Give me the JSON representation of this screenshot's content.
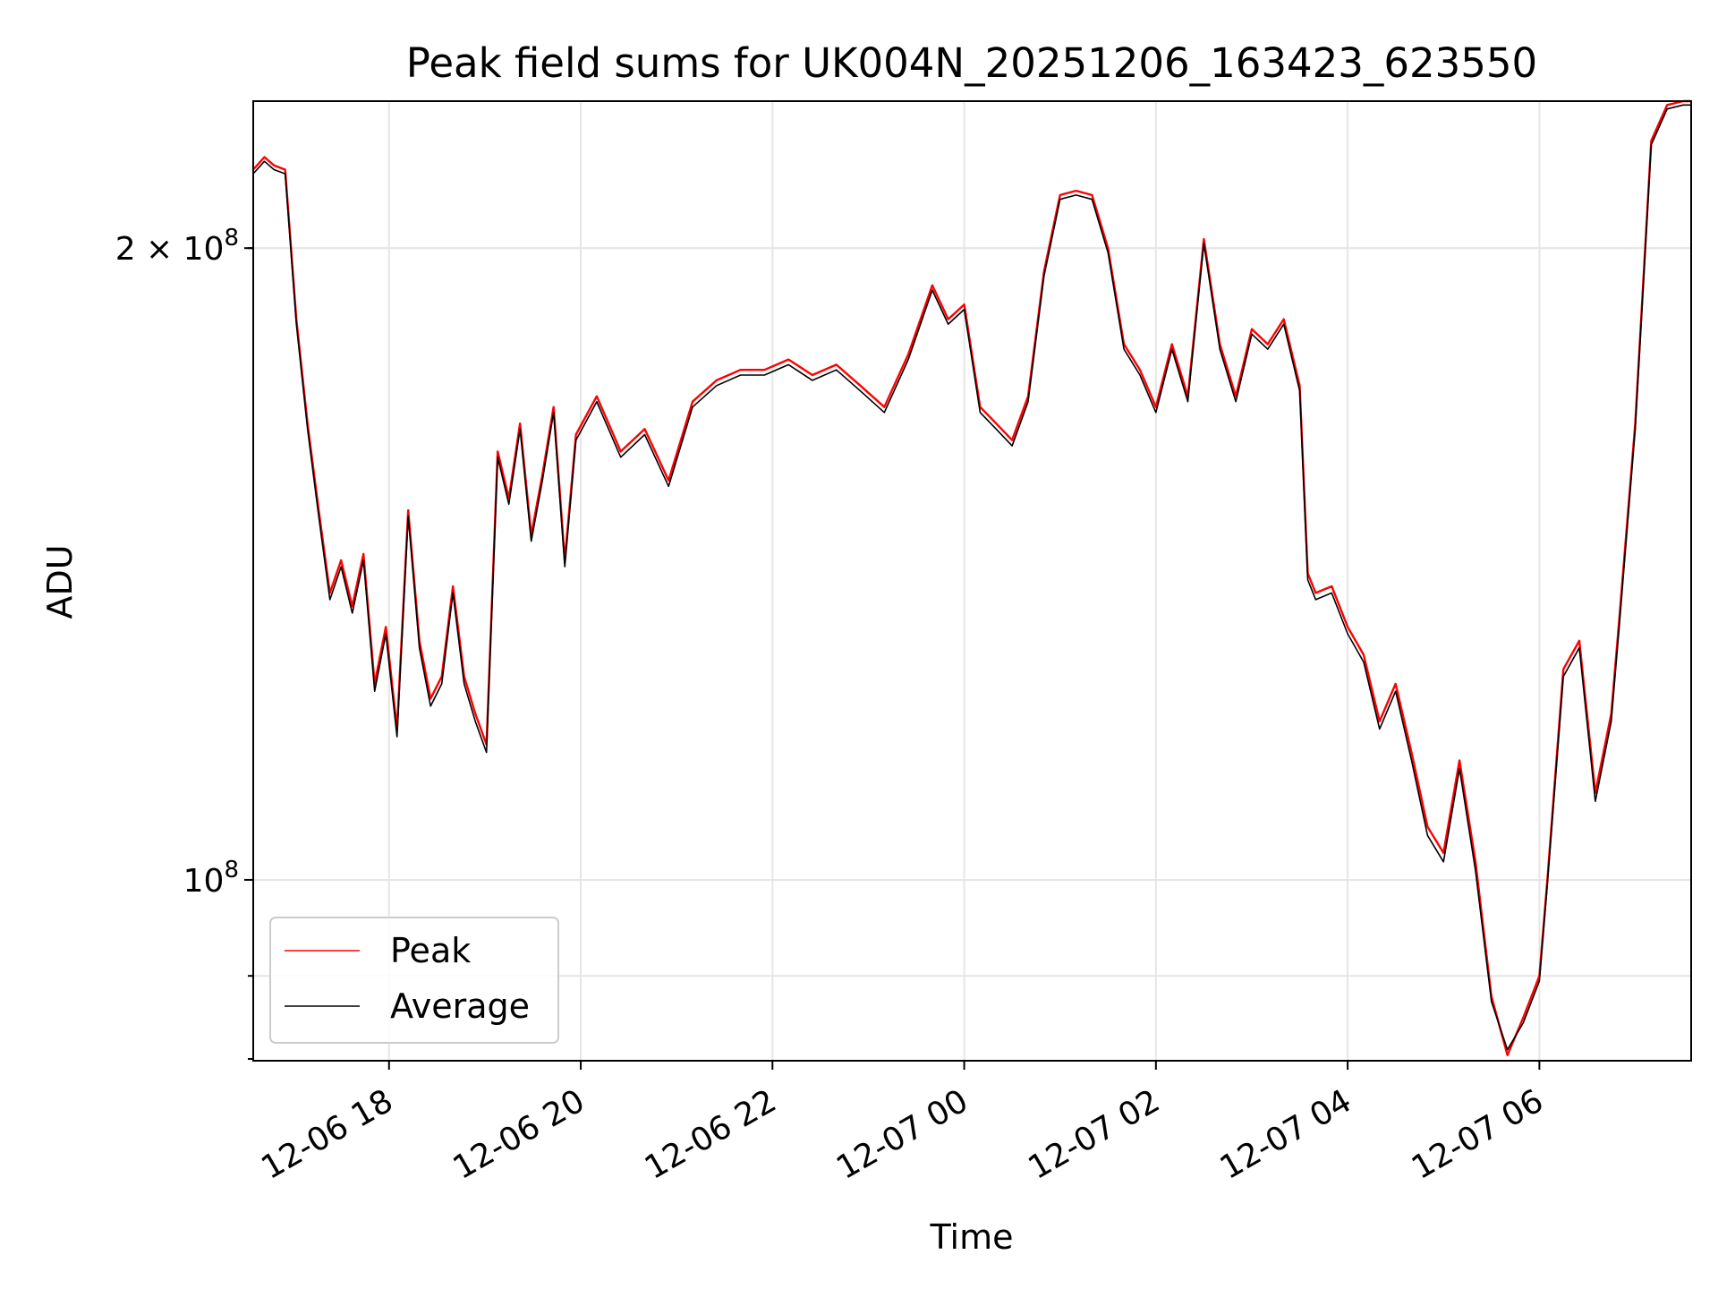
{
  "chart_data": {
    "type": "line",
    "title": "Peak field sums for UK004N_20251206_163423_623550",
    "xlabel": "Time",
    "ylabel": "ADU",
    "y_scale": "log",
    "grid": true,
    "legend_position": "lower-left",
    "xlim": [
      "2025-12-06 16:35",
      "2025-12-07 07:35"
    ],
    "ylim": [
      82000000,
      235000000
    ],
    "x_ticks": [
      {
        "value": "2025-12-06 18:00",
        "label": "12-06 18"
      },
      {
        "value": "2025-12-06 20:00",
        "label": "12-06 20"
      },
      {
        "value": "2025-12-06 22:00",
        "label": "12-06 22"
      },
      {
        "value": "2025-12-07 00:00",
        "label": "12-07 00"
      },
      {
        "value": "2025-12-07 02:00",
        "label": "12-07 02"
      },
      {
        "value": "2025-12-07 04:00",
        "label": "12-07 04"
      },
      {
        "value": "2025-12-07 06:00",
        "label": "12-07 06"
      }
    ],
    "y_ticks_major": [
      {
        "value": 100000000,
        "label": "10",
        "exp": "8"
      },
      {
        "value": 200000000,
        "label": "2 × 10",
        "exp": "8"
      }
    ],
    "y_ticks_minor": [
      90000000,
      200000000
    ],
    "x": [
      "2025-12-06 16:35",
      "2025-12-06 16:42",
      "2025-12-06 16:48",
      "2025-12-06 16:55",
      "2025-12-06 17:02",
      "2025-12-06 17:09",
      "2025-12-06 17:16",
      "2025-12-06 17:23",
      "2025-12-06 17:30",
      "2025-12-06 17:37",
      "2025-12-06 17:44",
      "2025-12-06 17:51",
      "2025-12-06 17:58",
      "2025-12-06 18:05",
      "2025-12-06 18:12",
      "2025-12-06 18:19",
      "2025-12-06 18:26",
      "2025-12-06 18:33",
      "2025-12-06 18:40",
      "2025-12-06 18:47",
      "2025-12-06 18:54",
      "2025-12-06 19:01",
      "2025-12-06 19:08",
      "2025-12-06 19:15",
      "2025-12-06 19:22",
      "2025-12-06 19:29",
      "2025-12-06 19:36",
      "2025-12-06 19:43",
      "2025-12-06 19:50",
      "2025-12-06 19:57",
      "2025-12-06 20:10",
      "2025-12-06 20:25",
      "2025-12-06 20:40",
      "2025-12-06 20:55",
      "2025-12-06 21:10",
      "2025-12-06 21:25",
      "2025-12-06 21:40",
      "2025-12-06 21:55",
      "2025-12-06 22:10",
      "2025-12-06 22:25",
      "2025-12-06 22:40",
      "2025-12-06 22:55",
      "2025-12-06 23:10",
      "2025-12-06 23:25",
      "2025-12-06 23:40",
      "2025-12-06 23:50",
      "2025-12-07 00:00",
      "2025-12-07 00:10",
      "2025-12-07 00:20",
      "2025-12-07 00:30",
      "2025-12-07 00:40",
      "2025-12-07 00:50",
      "2025-12-07 01:00",
      "2025-12-07 01:10",
      "2025-12-07 01:20",
      "2025-12-07 01:30",
      "2025-12-07 01:40",
      "2025-12-07 01:50",
      "2025-12-07 02:00",
      "2025-12-07 02:10",
      "2025-12-07 02:20",
      "2025-12-07 02:30",
      "2025-12-07 02:40",
      "2025-12-07 02:50",
      "2025-12-07 03:00",
      "2025-12-07 03:10",
      "2025-12-07 03:20",
      "2025-12-07 03:30",
      "2025-12-07 03:35",
      "2025-12-07 03:40",
      "2025-12-07 03:50",
      "2025-12-07 04:00",
      "2025-12-07 04:10",
      "2025-12-07 04:20",
      "2025-12-07 04:30",
      "2025-12-07 04:40",
      "2025-12-07 04:50",
      "2025-12-07 05:00",
      "2025-12-07 05:10",
      "2025-12-07 05:20",
      "2025-12-07 05:30",
      "2025-12-07 05:40",
      "2025-12-07 05:50",
      "2025-12-07 06:00",
      "2025-12-07 06:05",
      "2025-12-07 06:15",
      "2025-12-07 06:25",
      "2025-12-07 06:35",
      "2025-12-07 06:45",
      "2025-12-07 06:50",
      "2025-12-07 07:00",
      "2025-12-07 07:10",
      "2025-12-07 07:20",
      "2025-12-07 07:30",
      "2025-12-07 07:35"
    ],
    "series": [
      {
        "name": "Peak",
        "color": "#ff0000",
        "values": [
          218000000,
          221000000,
          219000000,
          218000000,
          185000000,
          165000000,
          150000000,
          137000000,
          142000000,
          135000000,
          143000000,
          124000000,
          132000000,
          118000000,
          150000000,
          130000000,
          122000000,
          125000000,
          138000000,
          125000000,
          120000000,
          116000000,
          160000000,
          152000000,
          165000000,
          146000000,
          156000000,
          168000000,
          142000000,
          163000000,
          170000000,
          160000000,
          164000000,
          155000000,
          169000000,
          173000000,
          175000000,
          175000000,
          177000000,
          174000000,
          176000000,
          172000000,
          168000000,
          178000000,
          192000000,
          185000000,
          188000000,
          168000000,
          165000000,
          162000000,
          170000000,
          195000000,
          212000000,
          213000000,
          212000000,
          200000000,
          180000000,
          175000000,
          168000000,
          180000000,
          170000000,
          202000000,
          180000000,
          170000000,
          183000000,
          180000000,
          185000000,
          172000000,
          140000000,
          137000000,
          138000000,
          132000000,
          128000000,
          119000000,
          124000000,
          115000000,
          106000000,
          103000000,
          114000000,
          102000000,
          88000000,
          82500000,
          86000000,
          90000000,
          100000000,
          126000000,
          130000000,
          110000000,
          120000000,
          133000000,
          165000000,
          225000000,
          234000000,
          235000000,
          235000000
        ]
      },
      {
        "name": "Average",
        "color": "#000000",
        "values": [
          217000000,
          220000000,
          218000000,
          217000000,
          184000000,
          164000000,
          149000000,
          136000000,
          141000000,
          134000000,
          142000000,
          123000000,
          131000000,
          117000000,
          149000000,
          129000000,
          121000000,
          124000000,
          137000000,
          124000000,
          119000000,
          115000000,
          159000000,
          151000000,
          164000000,
          145000000,
          155000000,
          167000000,
          141000000,
          162000000,
          169000000,
          159000000,
          163000000,
          154000000,
          168000000,
          172000000,
          174000000,
          174000000,
          176000000,
          173000000,
          175000000,
          171000000,
          167000000,
          177000000,
          191000000,
          184000000,
          187000000,
          167000000,
          164000000,
          161000000,
          169000000,
          194000000,
          211000000,
          212000000,
          211000000,
          199000000,
          179000000,
          174000000,
          167000000,
          179000000,
          169000000,
          201000000,
          179000000,
          169000000,
          182000000,
          179000000,
          184000000,
          171000000,
          139000000,
          136000000,
          137000000,
          131000000,
          127000000,
          118000000,
          123000000,
          114000000,
          105000000,
          102000000,
          113000000,
          101000000,
          87500000,
          83000000,
          85500000,
          89500000,
          99500000,
          125000000,
          129000000,
          109000000,
          119000000,
          132000000,
          164000000,
          224000000,
          233000000,
          234000000,
          234000000
        ]
      }
    ]
  }
}
